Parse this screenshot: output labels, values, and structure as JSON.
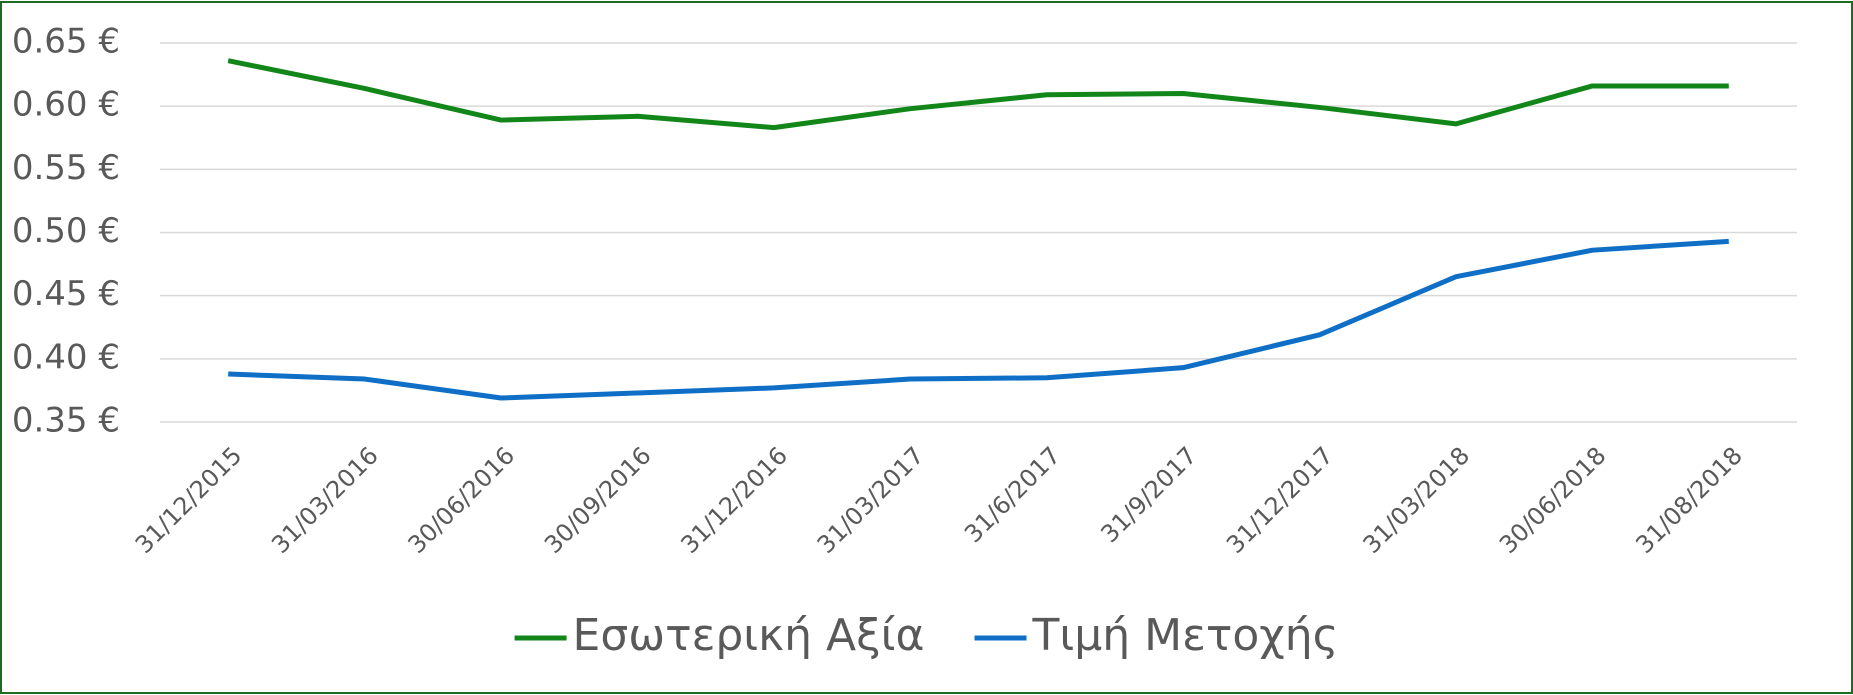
{
  "chart_data": {
    "type": "line",
    "categories": [
      "31/12/2015",
      "31/03/2016",
      "30/06/2016",
      "30/09/2016",
      "31/12/2016",
      "31/03/2017",
      "31/6/2017",
      "31/9/2017",
      "31/12/2017",
      "31/03/2018",
      "30/06/2018",
      "31/08/2018"
    ],
    "series": [
      {
        "name": "Εσωτερική Αξία",
        "color": "#13861a",
        "values": [
          0.636,
          0.614,
          0.589,
          0.592,
          0.583,
          0.598,
          0.609,
          0.61,
          0.599,
          0.586,
          0.616,
          0.616
        ]
      },
      {
        "name": "Τιμή Μετοχής",
        "color": "#0f6fc6",
        "values": [
          0.388,
          0.384,
          0.369,
          0.373,
          0.377,
          0.384,
          0.385,
          0.393,
          0.419,
          0.465,
          0.486,
          0.493
        ]
      }
    ],
    "ylim": [
      0.35,
      0.65
    ],
    "yticks": [
      {
        "value": 0.35,
        "label": "0.35 €"
      },
      {
        "value": 0.4,
        "label": "0.40 €"
      },
      {
        "value": 0.45,
        "label": "0.45 €"
      },
      {
        "value": 0.5,
        "label": "0.50 €"
      },
      {
        "value": 0.55,
        "label": "0.55 €"
      },
      {
        "value": 0.6,
        "label": "0.60 €"
      },
      {
        "value": 0.65,
        "label": "0.65 €"
      }
    ],
    "grid": true,
    "legend": "bottom"
  }
}
